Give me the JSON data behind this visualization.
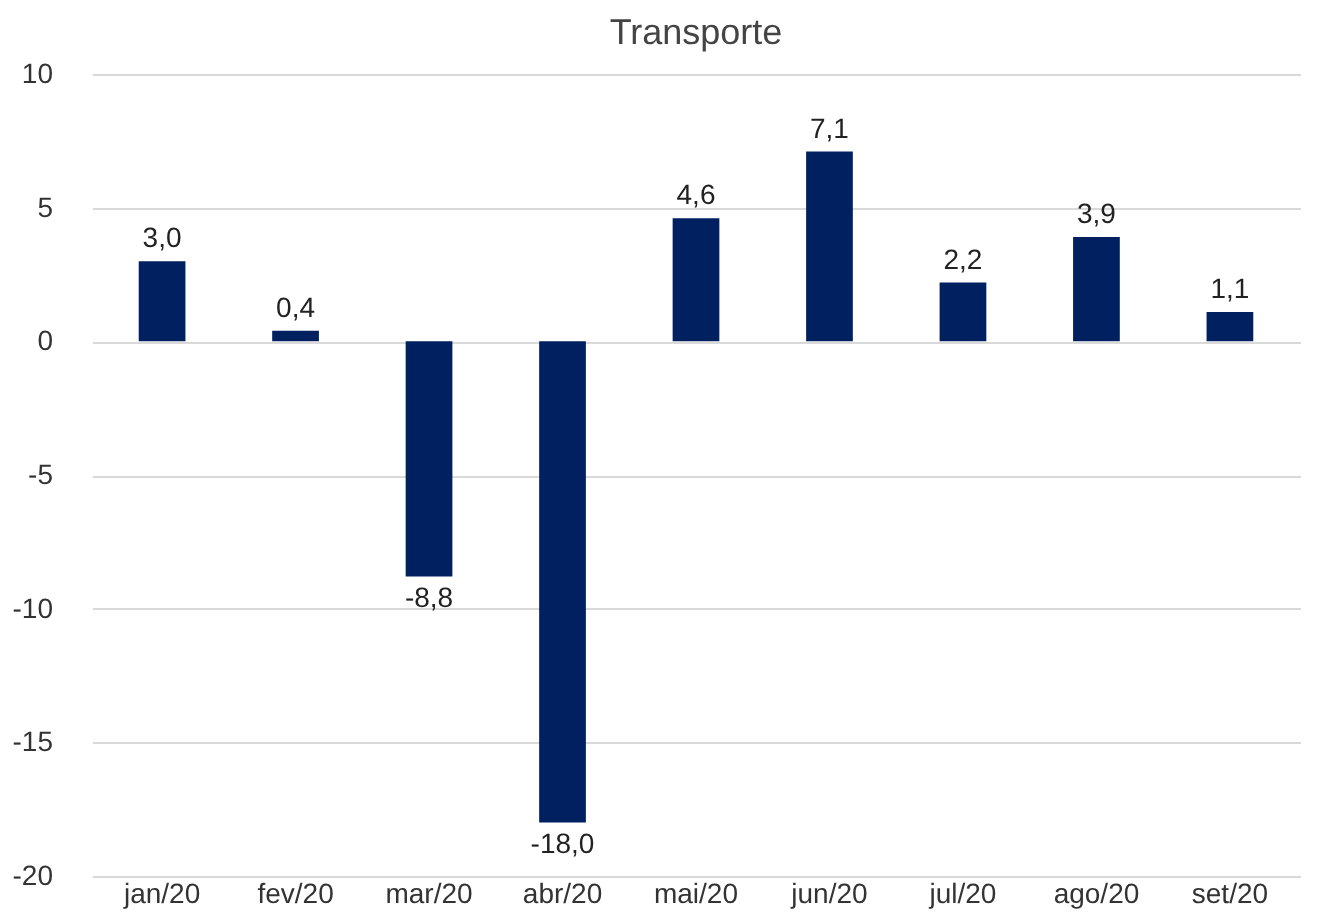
{
  "chart_data": {
    "type": "bar",
    "title": "Transporte",
    "categories": [
      "jan/20",
      "fev/20",
      "mar/20",
      "abr/20",
      "mai/20",
      "jun/20",
      "jul/20",
      "ago/20",
      "set/20"
    ],
    "values": [
      3.0,
      0.4,
      -8.8,
      -18.0,
      4.6,
      7.1,
      2.2,
      3.9,
      1.1
    ],
    "value_labels": [
      "3,0",
      "0,4",
      "-8,8",
      "-18,0",
      "4,6",
      "7,1",
      "2,2",
      "3,9",
      "1,1"
    ],
    "color": "#002060",
    "ylim": [
      -20,
      10
    ],
    "yticks": [
      -20,
      -15,
      -10,
      -5,
      0,
      5,
      10
    ],
    "grid": "y"
  }
}
